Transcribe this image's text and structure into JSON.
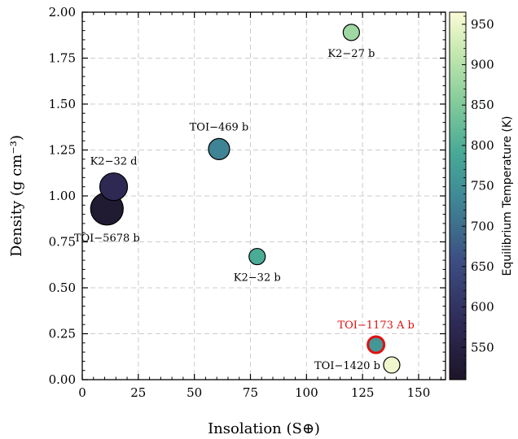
{
  "chart_data": {
    "type": "scatter",
    "title": "",
    "xlabel": "Insolation (S⊕)",
    "ylabel": "Density (g cm⁻³)",
    "xlim": [
      0,
      162
    ],
    "ylim": [
      0,
      2.0
    ],
    "x_ticks": [
      "0",
      "25",
      "50",
      "75",
      "100",
      "125",
      "150"
    ],
    "y_ticks": [
      "0.00",
      "0.25",
      "0.50",
      "0.75",
      "1.00",
      "1.25",
      "1.50",
      "1.75",
      "2.00"
    ],
    "grid": true,
    "colorbar": {
      "label": "Equilibrium Temperature (K)",
      "range": [
        510,
        965
      ],
      "ticks": [
        "550",
        "600",
        "650",
        "700",
        "750",
        "800",
        "850",
        "900",
        "950"
      ],
      "colormap": "cubehelix-dark-to-light"
    },
    "points": [
      {
        "name": "K2−27 b",
        "x": 120,
        "y": 1.89,
        "teq": 880,
        "size": 10,
        "highlight": false,
        "label_pos": "below"
      },
      {
        "name": "TOI−469 b",
        "x": 61,
        "y": 1.255,
        "teq": 730,
        "size": 13,
        "highlight": false,
        "label_pos": "above"
      },
      {
        "name": "K2−32 d",
        "x": 14,
        "y": 1.05,
        "teq": 575,
        "size": 17,
        "highlight": false,
        "label_pos": "above"
      },
      {
        "name": "TOI−5678 b",
        "x": 11,
        "y": 0.93,
        "teq": 525,
        "size": 20,
        "highlight": false,
        "label_pos": "below"
      },
      {
        "name": "K2−32 b",
        "x": 78,
        "y": 0.67,
        "teq": 795,
        "size": 10,
        "highlight": false,
        "label_pos": "below"
      },
      {
        "name": "TOI−1173 A b",
        "x": 131,
        "y": 0.19,
        "teq": 760,
        "size": 10,
        "highlight": true,
        "label_pos": "above"
      },
      {
        "name": "TOI−1420 b",
        "x": 138,
        "y": 0.08,
        "teq": 955,
        "size": 10,
        "highlight": false,
        "label_pos": "left"
      }
    ]
  }
}
